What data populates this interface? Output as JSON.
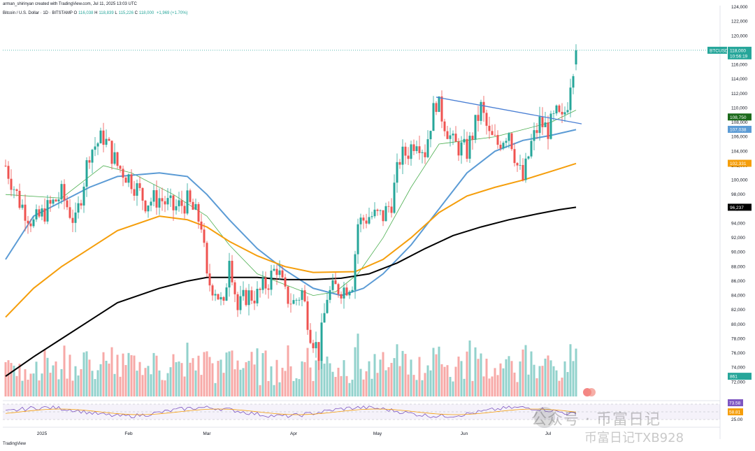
{
  "header": {
    "attribution": "arman_shirinyan created with TradingView.com, Jul 11, 2025 13:03 UTC",
    "symbol": "Bitcoin / U.S. Dollar · 1D · BITSTAMP",
    "ohlc": [
      {
        "k": "O",
        "v": "116,038"
      },
      {
        "k": "H",
        "v": "118,839"
      },
      {
        "k": "L",
        "v": "115,226"
      },
      {
        "k": "C",
        "v": "118,000"
      },
      {
        "k": "",
        "v": "+1,969 (+1.70%)"
      }
    ]
  },
  "footer": {
    "logo": "TradingView"
  },
  "watermark": {
    "line1": "公众号 · 币富日记",
    "line2": "币富日记TXB928"
  },
  "colors": {
    "up": "#26a69a",
    "down": "#ef5350",
    "ma_green": "#4caf50",
    "ma_blue": "#5b9bd5",
    "ma_orange": "#f59e0b",
    "ma_black": "#000000",
    "trendline": "#4a7fd4",
    "rsi": "#7e57c2"
  },
  "chart_data": {
    "type": "candlestick",
    "y_range": [
      70000,
      124000
    ],
    "y_ticks": [
      "124,000",
      "122,000",
      "120,000",
      "118,000",
      "116,000",
      "114,000",
      "112,000",
      "110,000",
      "108,000",
      "106,000",
      "104,000",
      "102,000",
      "100,000",
      "98,000",
      "96,000",
      "94,000",
      "92,000",
      "90,000",
      "88,000",
      "86,000",
      "84,000",
      "82,000",
      "80,000",
      "78,000",
      "76,000",
      "74,000",
      "72,000"
    ],
    "x_labels": [
      {
        "label": "2025",
        "day": 13
      },
      {
        "label": "Feb",
        "day": 44
      },
      {
        "label": "Mar",
        "day": 72
      },
      {
        "label": "Apr",
        "day": 103
      },
      {
        "label": "May",
        "day": 133
      },
      {
        "label": "Jun",
        "day": 164
      },
      {
        "label": "Jul",
        "day": 194
      }
    ],
    "close_path": [
      [
        0,
        102000
      ],
      [
        5,
        97000
      ],
      [
        10,
        94000
      ],
      [
        15,
        96000
      ],
      [
        20,
        98000
      ],
      [
        25,
        94000
      ],
      [
        30,
        104000
      ],
      [
        35,
        106000
      ],
      [
        40,
        102000
      ],
      [
        45,
        100000
      ],
      [
        50,
        97000
      ],
      [
        55,
        97500
      ],
      [
        60,
        96000
      ],
      [
        65,
        97000
      ],
      [
        70,
        94000
      ],
      [
        72,
        86000
      ],
      [
        75,
        85000
      ],
      [
        78,
        82000
      ],
      [
        80,
        90000
      ],
      [
        83,
        82000
      ],
      [
        86,
        84000
      ],
      [
        90,
        84000
      ],
      [
        94,
        86000
      ],
      [
        97,
        88000
      ],
      [
        100,
        84000
      ],
      [
        103,
        83000
      ],
      [
        106,
        84500
      ],
      [
        109,
        79000
      ],
      [
        112,
        76000
      ],
      [
        115,
        84000
      ],
      [
        118,
        85000
      ],
      [
        121,
        85000
      ],
      [
        124,
        86000
      ],
      [
        126,
        94000
      ],
      [
        130,
        95000
      ],
      [
        135,
        95000
      ],
      [
        138,
        97000
      ],
      [
        141,
        103000
      ],
      [
        144,
        104000
      ],
      [
        147,
        106000
      ],
      [
        150,
        104000
      ],
      [
        152,
        108000
      ],
      [
        154,
        111000
      ],
      [
        156,
        109000
      ],
      [
        160,
        105000
      ],
      [
        165,
        104000
      ],
      [
        170,
        110000
      ],
      [
        173,
        106000
      ],
      [
        176,
        105000
      ],
      [
        180,
        107000
      ],
      [
        183,
        102000
      ],
      [
        185,
        100000
      ],
      [
        188,
        105000
      ],
      [
        191,
        108000
      ],
      [
        194,
        107000
      ],
      [
        197,
        109000
      ],
      [
        199,
        108000
      ],
      [
        201,
        111000
      ],
      [
        202,
        114000
      ],
      [
        203,
        116000
      ],
      [
        204,
        118000
      ]
    ],
    "series": [
      {
        "name": "MA20",
        "color": "#4caf50",
        "points": [
          [
            0,
            98000
          ],
          [
            20,
            97500
          ],
          [
            35,
            102000
          ],
          [
            45,
            101000
          ],
          [
            60,
            98000
          ],
          [
            72,
            95000
          ],
          [
            80,
            91000
          ],
          [
            90,
            87000
          ],
          [
            100,
            85500
          ],
          [
            110,
            84000
          ],
          [
            118,
            84500
          ],
          [
            126,
            87000
          ],
          [
            135,
            92000
          ],
          [
            145,
            99000
          ],
          [
            155,
            105000
          ],
          [
            165,
            105500
          ],
          [
            175,
            106000
          ],
          [
            185,
            107000
          ],
          [
            195,
            108000
          ],
          [
            204,
            109700
          ]
        ]
      },
      {
        "name": "MA50",
        "color": "#5b9bd5",
        "points": [
          [
            0,
            89000
          ],
          [
            10,
            95000
          ],
          [
            20,
            97000
          ],
          [
            30,
            99000
          ],
          [
            40,
            100500
          ],
          [
            55,
            101000
          ],
          [
            65,
            100500
          ],
          [
            72,
            98000
          ],
          [
            80,
            94500
          ],
          [
            90,
            90500
          ],
          [
            100,
            87500
          ],
          [
            110,
            85000
          ],
          [
            120,
            84000
          ],
          [
            128,
            85000
          ],
          [
            135,
            87000
          ],
          [
            145,
            91000
          ],
          [
            155,
            96000
          ],
          [
            165,
            101000
          ],
          [
            175,
            104000
          ],
          [
            185,
            105500
          ],
          [
            195,
            106200
          ],
          [
            204,
            107000
          ]
        ]
      },
      {
        "name": "MA100",
        "color": "#f59e0b",
        "points": [
          [
            0,
            81000
          ],
          [
            10,
            85000
          ],
          [
            20,
            88000
          ],
          [
            30,
            90500
          ],
          [
            40,
            93000
          ],
          [
            55,
            95000
          ],
          [
            65,
            94500
          ],
          [
            72,
            93500
          ],
          [
            80,
            91500
          ],
          [
            90,
            89500
          ],
          [
            100,
            88000
          ],
          [
            110,
            87200
          ],
          [
            125,
            87300
          ],
          [
            135,
            89000
          ],
          [
            145,
            92000
          ],
          [
            155,
            95500
          ],
          [
            165,
            97800
          ],
          [
            175,
            99000
          ],
          [
            185,
            100000
          ],
          [
            195,
            101200
          ],
          [
            204,
            102300
          ]
        ]
      },
      {
        "name": "MA200",
        "color": "#000000",
        "points": [
          [
            0,
            72800
          ],
          [
            10,
            75500
          ],
          [
            20,
            78000
          ],
          [
            30,
            80500
          ],
          [
            40,
            83000
          ],
          [
            55,
            85000
          ],
          [
            65,
            86000
          ],
          [
            72,
            86500
          ],
          [
            80,
            86500
          ],
          [
            90,
            86500
          ],
          [
            100,
            86200
          ],
          [
            110,
            86200
          ],
          [
            120,
            86400
          ],
          [
            130,
            87000
          ],
          [
            140,
            88500
          ],
          [
            150,
            90500
          ],
          [
            160,
            92300
          ],
          [
            170,
            93500
          ],
          [
            180,
            94500
          ],
          [
            190,
            95300
          ],
          [
            198,
            95900
          ],
          [
            204,
            96237
          ]
        ]
      }
    ],
    "trendline": [
      [
        154,
        111500
      ],
      [
        206,
        107800
      ]
    ],
    "price_tags": [
      {
        "label": "BTCUSD",
        "value": "118,000",
        "sub": "10:56:19",
        "price": 118000,
        "color": "#26a69a"
      },
      {
        "label": "",
        "value": "108,750",
        "price": 108750,
        "color": "#1b6a1b"
      },
      {
        "label": "",
        "value": "107,038",
        "price": 107038,
        "color": "#5b9bd5"
      },
      {
        "label": "",
        "value": "102,331",
        "price": 102331,
        "color": "#f59e0b"
      },
      {
        "label": "",
        "value": "96,237",
        "price": 96237,
        "color": "#000000"
      },
      {
        "label": "",
        "value": "861",
        "price": 72800,
        "color": "#26a69a"
      }
    ],
    "rsi": {
      "ticks": [
        "75.00",
        "50.00",
        "25.00"
      ],
      "tags": [
        {
          "value": "73.58",
          "color": "#7e57c2"
        },
        {
          "value": "58.81",
          "color": "#f59e0b"
        }
      ]
    }
  }
}
